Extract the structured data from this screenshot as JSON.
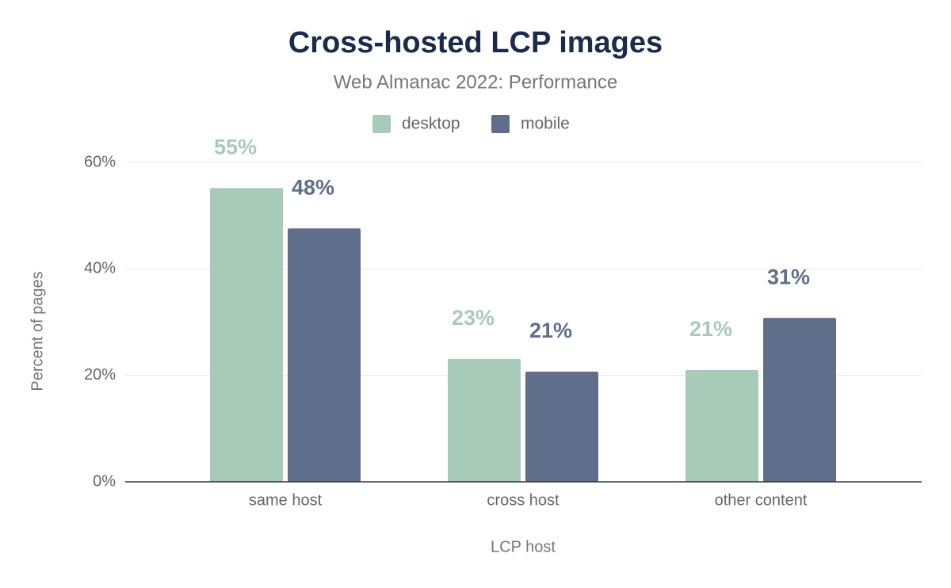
{
  "chart_data": {
    "type": "bar",
    "title": "Cross-hosted LCP images",
    "subtitle": "Web Almanac 2022: Performance",
    "x_label": "LCP host",
    "y_label": "Percent of pages",
    "categories": [
      "same host",
      "cross host",
      "other content"
    ],
    "series": [
      {
        "name": "desktop",
        "color": "#a8cbb9",
        "values": [
          55.2,
          23.1,
          21.0
        ],
        "value_labels": [
          "55%",
          "23%",
          "21%"
        ]
      },
      {
        "name": "mobile",
        "color": "#5f6f8b",
        "values": [
          47.6,
          20.7,
          30.8
        ],
        "value_labels": [
          "48%",
          "21%",
          "31%"
        ]
      }
    ],
    "ylim": [
      0,
      60
    ],
    "yticks": [
      {
        "value": 0,
        "label": "0%"
      },
      {
        "value": 20,
        "label": "20%"
      },
      {
        "value": 40,
        "label": "40%"
      },
      {
        "value": 60,
        "label": "60%"
      }
    ],
    "grid": true
  }
}
